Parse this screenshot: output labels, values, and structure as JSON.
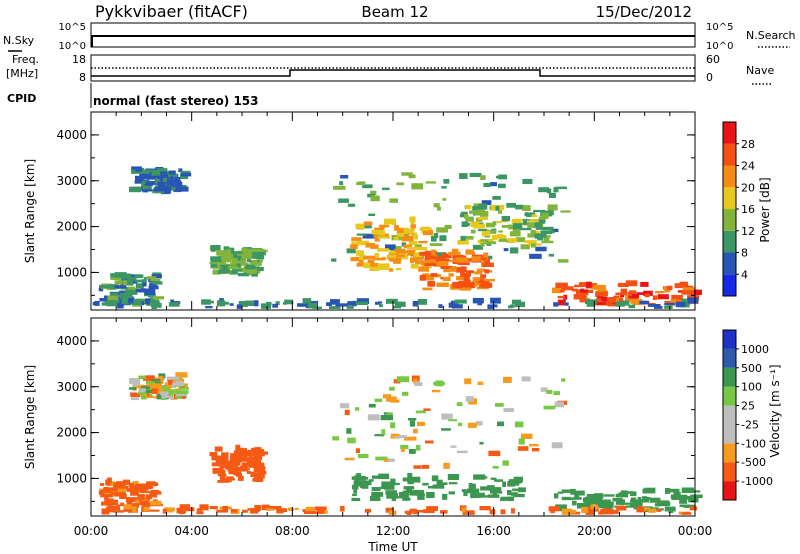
{
  "header": {
    "station": "Pykkvibaer (fitACF)",
    "beam": "Beam 12",
    "date": "15/Dec/2012"
  },
  "top_panels": {
    "nsky_label": "N.Sky",
    "nsky_ticks": [
      "10^5",
      "10^0"
    ],
    "nsearch_label": "N.Search",
    "nsearch_ticks": [
      "10^5",
      "10^0"
    ],
    "freq_label": "Freq.",
    "freq_unit": "[MHz]",
    "freq_ticks": [
      "18",
      "8"
    ],
    "nave_label": "Nave",
    "nave_ticks": [
      "60",
      "0"
    ],
    "cpid_label": "CPID",
    "cpid_text": "normal (fast stereo) 153"
  },
  "colors": {
    "power": [
      "#1428e6",
      "#2855b4",
      "#3c9664",
      "#82b43c",
      "#e6c81e",
      "#f58c14",
      "#f55014",
      "#e61414"
    ],
    "velocity": [
      "#e61414",
      "#f55a14",
      "#f59b1e",
      "#bebebe",
      "#bebebe",
      "#78c846",
      "#3c9650",
      "#2d5aaa",
      "#1e32c8"
    ]
  },
  "chart_data": [
    {
      "type": "heatmap",
      "title": "",
      "quantity": "Power",
      "ylabel": "Slant Range [km]",
      "xlabel": "",
      "x_ticks": [
        "00:00",
        "04:00",
        "08:00",
        "12:00",
        "16:00",
        "20:00",
        "00:00"
      ],
      "y_ticks": [
        "1000",
        "2000",
        "3000",
        "4000"
      ],
      "ylim": [
        180,
        4500
      ],
      "xlim_hours": [
        0,
        24
      ],
      "colorbar_label": "Power [dB]",
      "colorbar_ticks": [
        "4",
        "8",
        "12",
        "16",
        "20",
        "24",
        "28"
      ],
      "regions": [
        {
          "t": [
            1.5,
            3.6
          ],
          "r": [
            2700,
            3200
          ],
          "v": 8
        },
        {
          "t": [
            4.7,
            6.6
          ],
          "r": [
            900,
            1500
          ],
          "v": 12
        },
        {
          "t": [
            0.3,
            2.5
          ],
          "r": [
            250,
            900
          ],
          "v": 10
        },
        {
          "t": [
            9.5,
            18.7
          ],
          "r": [
            1200,
            3150
          ],
          "v": 11
        },
        {
          "t": [
            10.3,
            13.2
          ],
          "r": [
            1000,
            2100
          ],
          "v": 20
        },
        {
          "t": [
            13.0,
            15.7
          ],
          "r": [
            600,
            1400
          ],
          "v": 24
        },
        {
          "t": [
            14.5,
            18.0
          ],
          "r": [
            1500,
            2400
          ],
          "v": 14
        },
        {
          "t": [
            18.3,
            23.9
          ],
          "r": [
            240,
            700
          ],
          "v": 26
        },
        {
          "t": [
            0.0,
            24.0
          ],
          "r": [
            200,
            330
          ],
          "v": 8
        }
      ]
    },
    {
      "type": "heatmap",
      "title": "",
      "quantity": "Velocity",
      "ylabel": "Slant Range [km]",
      "xlabel": "Time UT",
      "x_ticks": [
        "00:00",
        "04:00",
        "08:00",
        "12:00",
        "16:00",
        "20:00",
        "00:00"
      ],
      "y_ticks": [
        "1000",
        "2000",
        "3000",
        "4000"
      ],
      "ylim": [
        180,
        4500
      ],
      "xlim_hours": [
        0,
        24
      ],
      "colorbar_label": "Velocity [m s⁻¹]",
      "colorbar_ticks": [
        "1000",
        "500",
        "100",
        "25",
        "-25",
        "-100",
        "-500",
        "-1000"
      ],
      "regions": [
        {
          "t": [
            1.5,
            3.6
          ],
          "r": [
            2700,
            3200
          ],
          "v": 0
        },
        {
          "t": [
            4.7,
            6.6
          ],
          "r": [
            900,
            1600
          ],
          "v": -300
        },
        {
          "t": [
            0.3,
            2.5
          ],
          "r": [
            250,
            900
          ],
          "v": -200
        },
        {
          "t": [
            9.5,
            18.7
          ],
          "r": [
            1200,
            3150
          ],
          "v": 0
        },
        {
          "t": [
            10.3,
            17.0
          ],
          "r": [
            500,
            1000
          ],
          "v": 300
        },
        {
          "t": [
            18.3,
            23.9
          ],
          "r": [
            240,
            700
          ],
          "v": 300
        },
        {
          "t": [
            0.0,
            24.0
          ],
          "r": [
            200,
            330
          ],
          "v": -150
        }
      ]
    }
  ]
}
